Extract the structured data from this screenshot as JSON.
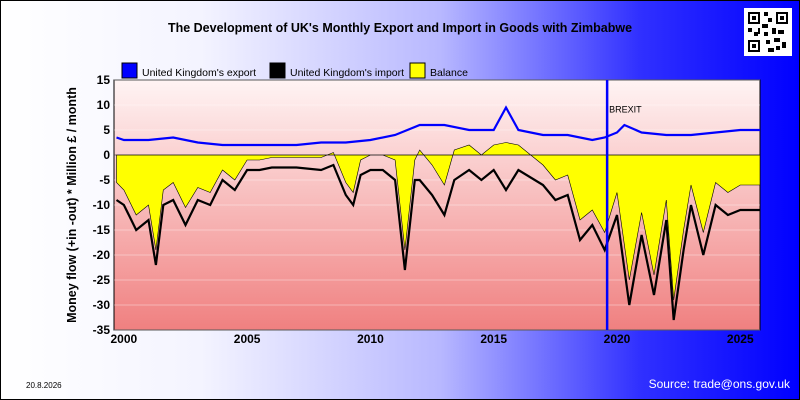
{
  "title": "The Development of UK's Monthly Export and Import in Goods with Zimbabwe",
  "date_stamp": "20.8.2026",
  "source": "Source: trade@ons.gov.uk",
  "qr_icon": "qr-code-icon",
  "chart_data": {
    "type": "line",
    "ylabel": "Money flow (+in -out) * Million £ / month",
    "ylim": [
      -35,
      15
    ],
    "y_ticks": [
      15,
      10,
      5,
      0,
      -5,
      -10,
      -15,
      -20,
      -25,
      -30,
      -35
    ],
    "x_ticks": [
      "2000",
      "2005",
      "2010",
      "2015",
      "2020",
      "2025"
    ],
    "x_range_years": [
      1999.6,
      2025.8
    ],
    "annotation": {
      "label": "BREXIT",
      "x": 2019.6
    },
    "legend_position": "top",
    "series": [
      {
        "name": "United Kingdom's export",
        "color": "#0000ff",
        "points": [
          [
            1999.7,
            3.5
          ],
          [
            2000,
            3
          ],
          [
            2001,
            3
          ],
          [
            2002,
            3.5
          ],
          [
            2003,
            2.5
          ],
          [
            2004,
            2
          ],
          [
            2005,
            2
          ],
          [
            2006,
            2
          ],
          [
            2007,
            2
          ],
          [
            2008,
            2.5
          ],
          [
            2009,
            2.5
          ],
          [
            2010,
            3
          ],
          [
            2011,
            4
          ],
          [
            2012,
            6
          ],
          [
            2013,
            6
          ],
          [
            2014,
            5
          ],
          [
            2015,
            5
          ],
          [
            2015.5,
            9.5
          ],
          [
            2016,
            5
          ],
          [
            2017,
            4
          ],
          [
            2018,
            4
          ],
          [
            2019,
            3
          ],
          [
            2019.5,
            3.5
          ],
          [
            2020,
            4.5
          ],
          [
            2020.3,
            6
          ],
          [
            2021,
            4.5
          ],
          [
            2022,
            4
          ],
          [
            2023,
            4
          ],
          [
            2024,
            4.5
          ],
          [
            2025,
            5
          ],
          [
            2025.8,
            5
          ]
        ]
      },
      {
        "name": "United Kingdom's import",
        "color": "#000000",
        "points": [
          [
            1999.7,
            -9
          ],
          [
            2000,
            -10
          ],
          [
            2000.5,
            -15
          ],
          [
            2001,
            -13
          ],
          [
            2001.3,
            -22
          ],
          [
            2001.6,
            -10
          ],
          [
            2002,
            -9
          ],
          [
            2002.5,
            -14
          ],
          [
            2003,
            -9
          ],
          [
            2003.5,
            -10
          ],
          [
            2004,
            -5
          ],
          [
            2004.5,
            -7
          ],
          [
            2005,
            -3
          ],
          [
            2005.5,
            -3
          ],
          [
            2006,
            -2.5
          ],
          [
            2007,
            -2.5
          ],
          [
            2008,
            -3
          ],
          [
            2008.5,
            -2
          ],
          [
            2009,
            -8
          ],
          [
            2009.3,
            -10
          ],
          [
            2009.6,
            -4
          ],
          [
            2010,
            -3
          ],
          [
            2010.5,
            -3
          ],
          [
            2011,
            -5
          ],
          [
            2011.4,
            -23
          ],
          [
            2011.8,
            -5
          ],
          [
            2012,
            -5
          ],
          [
            2012.5,
            -8
          ],
          [
            2013,
            -12
          ],
          [
            2013.4,
            -5
          ],
          [
            2014,
            -3
          ],
          [
            2014.5,
            -5
          ],
          [
            2015,
            -3
          ],
          [
            2015.5,
            -7
          ],
          [
            2016,
            -3
          ],
          [
            2017,
            -6
          ],
          [
            2017.5,
            -9
          ],
          [
            2018,
            -8
          ],
          [
            2018.5,
            -17
          ],
          [
            2019,
            -14
          ],
          [
            2019.5,
            -19
          ],
          [
            2020,
            -12
          ],
          [
            2020.5,
            -30
          ],
          [
            2021,
            -16
          ],
          [
            2021.5,
            -28
          ],
          [
            2022,
            -13
          ],
          [
            2022.3,
            -33
          ],
          [
            2022.7,
            -19
          ],
          [
            2023,
            -10
          ],
          [
            2023.5,
            -20
          ],
          [
            2024,
            -10
          ],
          [
            2024.5,
            -12
          ],
          [
            2025,
            -11
          ],
          [
            2025.8,
            -11
          ]
        ]
      },
      {
        "name": "Balance",
        "color": "#ffff00",
        "points": [
          [
            1999.7,
            -5.5
          ],
          [
            2000,
            -7
          ],
          [
            2000.5,
            -12
          ],
          [
            2001,
            -10
          ],
          [
            2001.3,
            -19
          ],
          [
            2001.6,
            -7
          ],
          [
            2002,
            -5.5
          ],
          [
            2002.5,
            -10.5
          ],
          [
            2003,
            -6.5
          ],
          [
            2003.5,
            -7.5
          ],
          [
            2004,
            -3
          ],
          [
            2004.5,
            -5
          ],
          [
            2005,
            -1
          ],
          [
            2005.5,
            -1
          ],
          [
            2006,
            -0.5
          ],
          [
            2007,
            -0.5
          ],
          [
            2008,
            -0.5
          ],
          [
            2008.5,
            0.5
          ],
          [
            2009,
            -5.5
          ],
          [
            2009.3,
            -7.5
          ],
          [
            2009.6,
            -1
          ],
          [
            2010,
            0
          ],
          [
            2010.5,
            0
          ],
          [
            2011,
            -1
          ],
          [
            2011.4,
            -19
          ],
          [
            2011.8,
            -1
          ],
          [
            2012,
            1
          ],
          [
            2012.5,
            -2
          ],
          [
            2013,
            -6
          ],
          [
            2013.4,
            1
          ],
          [
            2014,
            2
          ],
          [
            2014.5,
            0
          ],
          [
            2015,
            2
          ],
          [
            2015.5,
            2.5
          ],
          [
            2016,
            2
          ],
          [
            2017,
            -2
          ],
          [
            2017.5,
            -5
          ],
          [
            2018,
            -4
          ],
          [
            2018.5,
            -13
          ],
          [
            2019,
            -11
          ],
          [
            2019.5,
            -15.5
          ],
          [
            2020,
            -7.5
          ],
          [
            2020.5,
            -25
          ],
          [
            2021,
            -11.5
          ],
          [
            2021.5,
            -24
          ],
          [
            2022,
            -9
          ],
          [
            2022.3,
            -29
          ],
          [
            2022.7,
            -15
          ],
          [
            2023,
            -6
          ],
          [
            2023.5,
            -15.5
          ],
          [
            2024,
            -5.5
          ],
          [
            2024.5,
            -7.5
          ],
          [
            2025,
            -6
          ],
          [
            2025.8,
            -6
          ]
        ]
      }
    ]
  }
}
